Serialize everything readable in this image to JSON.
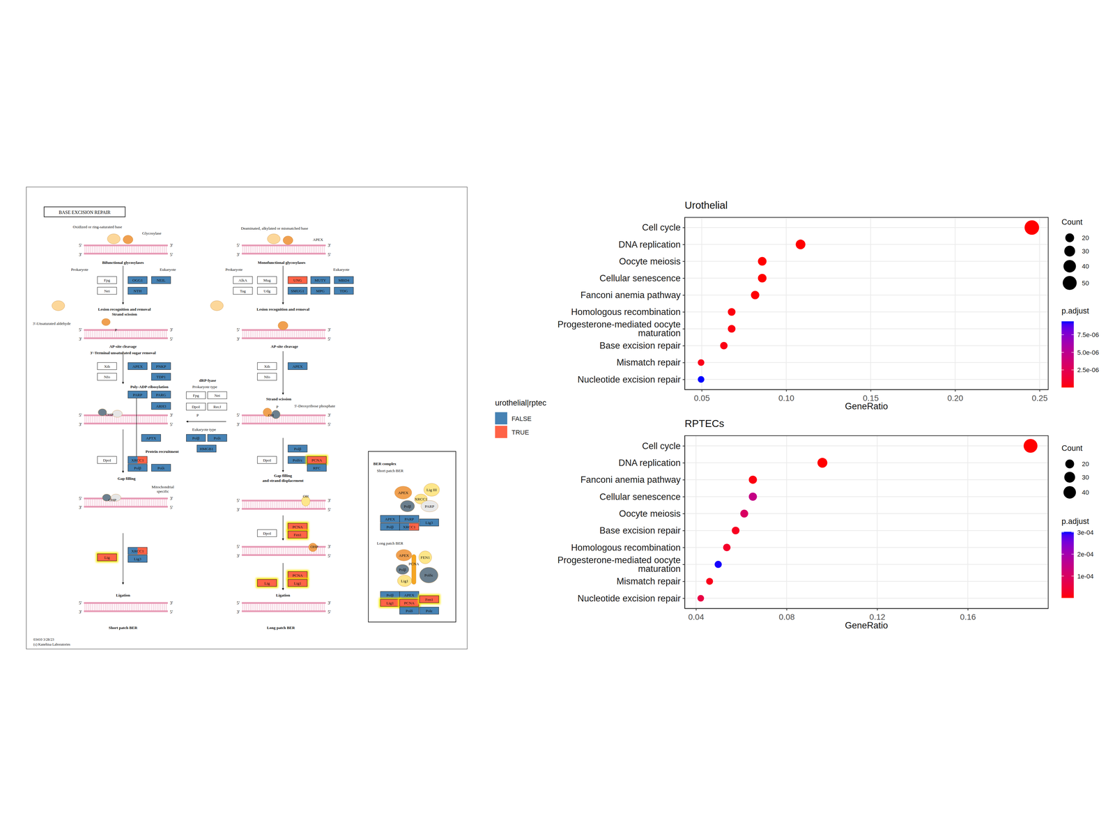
{
  "chart_data": [
    {
      "type": "dot",
      "title": "Urothelial",
      "x_label": "GeneRatio",
      "orientation": "horizontal",
      "grid": true,
      "categories": [
        "Cell cycle",
        "DNA replication",
        "Oocyte meiosis",
        "Cellular senescence",
        "Fanconi anemia pathway",
        "Homologous recombination",
        "Progesterone-mediated oocyte\nmaturation",
        "Base excision repair",
        "Mismatch repair",
        "Nucleotide excision repair"
      ],
      "values": [
        0.2454,
        0.1085,
        0.0858,
        0.0858,
        0.0816,
        0.0677,
        0.0677,
        0.0631,
        0.0496,
        0.0496
      ],
      "counts": [
        54,
        24,
        19,
        19,
        18,
        15,
        15,
        14,
        11,
        11
      ],
      "p_adjust": [
        2.1e-20,
        3.5e-12,
        4.2e-09,
        6.5e-09,
        5.5e-08,
        2.2e-07,
        2.4e-07,
        3.1e-07,
        4.5e-07,
        9.4e-06
      ],
      "xlim": [
        0.0399,
        0.2551
      ],
      "xticks": [
        0.05,
        {
          "value": 0.1,
          "label": "0.10"
        },
        0.15,
        {
          "value": 0.2,
          "label": "0.20"
        },
        0.25
      ],
      "size_legend": {
        "title": "Count",
        "values": [
          20,
          30,
          40,
          50
        ]
      },
      "colorbar": {
        "title": "p.adjust",
        "range": [
          2.1e-20,
          9.4e-06
        ],
        "colors": [
          "#FF0000",
          "#0000FF"
        ],
        "ticks": [
          {
            "value": 2.5e-06,
            "label": "2.5e-06"
          },
          {
            "value": 5e-06,
            "label": "5.0e-06"
          },
          {
            "value": 7.5e-06,
            "label": "7.5e-06"
          }
        ]
      }
    },
    {
      "type": "dot",
      "title": "RPTECs",
      "x_label": "GeneRatio",
      "orientation": "horizontal",
      "grid": true,
      "categories": [
        "Cell cycle",
        "DNA replication",
        "Fanconi anemia pathway",
        "Cellular senescence",
        "Oocyte meiosis",
        "Base excision repair",
        "Homologous recombination",
        "Progesterone-mediated oocyte\nmaturation",
        "Mismatch repair",
        "Nucleotide excision repair"
      ],
      "values": [
        0.1877,
        0.0958,
        0.0651,
        0.0651,
        0.0613,
        0.0575,
        0.0536,
        0.0498,
        0.046,
        0.0421
      ],
      "counts": [
        49,
        25,
        17,
        17,
        16,
        15,
        14,
        13,
        12,
        11
      ],
      "p_adjust": [
        1e-18,
        1e-10,
        8e-06,
        0.000145,
        0.0001,
        2e-05,
        3e-05,
        0.0003,
        1.5e-05,
        6e-05
      ],
      "xlim": [
        0.035,
        0.1955
      ],
      "xticks": [
        0.04,
        0.08,
        0.12,
        0.16
      ],
      "size_legend": {
        "title": "Count",
        "values": [
          20,
          30,
          40
        ]
      },
      "colorbar": {
        "title": "p.adjust",
        "range": [
          1e-18,
          0.000302
        ],
        "colors": [
          "#FF0000",
          "#0000FF"
        ],
        "ticks": [
          {
            "value": 0.0001,
            "label": "1e-04"
          },
          {
            "value": 0.0002,
            "label": "2e-04"
          },
          {
            "value": 0.0003,
            "label": "3e-04"
          }
        ]
      }
    }
  ],
  "diagram": {
    "title": "BASE EXCISION REPAIR",
    "dna_ends": [
      "5'",
      "3'"
    ],
    "labels": [
      "Oxidized or ring-saturated base",
      "Glycosylase",
      "Bifunctional glycosylases",
      "Prokaryote",
      "Eukaryote",
      "Lesion recognition and removal",
      "Strand scission",
      "3'-Unsaturated aldehyde",
      "AP-site cleavage",
      "3'-Terminal unsaturated sugar removal",
      "Poly-ADP-ribosylation",
      "Protein recruitment",
      "Gap filling",
      "Mitochondrial",
      "specific",
      "Ligation",
      "Short patch BER",
      "dRP-lyase",
      "Prokaryote type",
      "Eukaryote type",
      "Deaminated, alkylated or mismatched base",
      "APEX",
      "Monofunctional glycosylases",
      "Prokaryote",
      "Eukaryote",
      "Lesion recognition and removal",
      "AP-site cleavage",
      "Strand scission",
      "5'-Deoxyribose phosphate",
      "Gap filling",
      "and strand displacement",
      "Ligation",
      "Long patch BER",
      "BER complex",
      "Short patch BER",
      "Long patch BER",
      "APEX",
      "Lig III",
      "XRCC1",
      "Polβ",
      "PARP",
      "APEX",
      "FEN1",
      "PCNA",
      "Polβ",
      "Polδε",
      "Lig1",
      "P",
      "OHP",
      "OHP",
      "P",
      "OH",
      "OH",
      "P",
      "OHP"
    ],
    "genes": [
      {
        "label": "Fpg",
        "state": null
      },
      {
        "label": "Nei",
        "state": null
      },
      {
        "label": "OGG1",
        "state": "FALSE"
      },
      {
        "label": "NEIL",
        "state": "FALSE"
      },
      {
        "label": "NTH",
        "state": "FALSE"
      },
      {
        "label": "Xth",
        "state": null
      },
      {
        "label": "Nfo",
        "state": null
      },
      {
        "label": "APEX",
        "state": "FALSE"
      },
      {
        "label": "PNKP",
        "state": "FALSE"
      },
      {
        "label": "TDP1",
        "state": "FALSE"
      },
      {
        "label": "PARP",
        "state": "FALSE"
      },
      {
        "label": "PARG",
        "state": "FALSE"
      },
      {
        "label": "ARH3",
        "state": "FALSE"
      },
      {
        "label": "APTX",
        "state": "FALSE"
      },
      {
        "label": "DpoI",
        "state": null
      },
      {
        "label": "XRCC1",
        "state": [
          "FALSE",
          "TRUE"
        ]
      },
      {
        "label": "Polβ",
        "state": "FALSE"
      },
      {
        "label": "Polλ",
        "state": "FALSE"
      },
      {
        "label": "Lig",
        "state": "TRUE",
        "highlight": true
      },
      {
        "label": "XRCC1",
        "state": [
          "FALSE",
          "TRUE"
        ]
      },
      {
        "label": "Lig3",
        "state": "FALSE"
      },
      {
        "label": "Fpg",
        "state": null
      },
      {
        "label": "Nei",
        "state": null
      },
      {
        "label": "DpoI",
        "state": null
      },
      {
        "label": "RecJ",
        "state": null
      },
      {
        "label": "Polβ",
        "state": "FALSE"
      },
      {
        "label": "Polλ",
        "state": "FALSE"
      },
      {
        "label": "HMGB1",
        "state": "FALSE"
      },
      {
        "label": "AlkA",
        "state": null
      },
      {
        "label": "Mug",
        "state": null
      },
      {
        "label": "Tag",
        "state": null
      },
      {
        "label": "Udg",
        "state": null
      },
      {
        "label": "UNG",
        "state": "TRUE"
      },
      {
        "label": "MUTY",
        "state": "FALSE"
      },
      {
        "label": "MBD4",
        "state": "FALSE"
      },
      {
        "label": "SMUG1",
        "state": "FALSE"
      },
      {
        "label": "MPG",
        "state": "FALSE"
      },
      {
        "label": "TDG",
        "state": "FALSE"
      },
      {
        "label": "Xth",
        "state": null
      },
      {
        "label": "Nfo",
        "state": null
      },
      {
        "label": "APEX",
        "state": "FALSE"
      },
      {
        "label": "Polβ",
        "state": "FALSE"
      },
      {
        "label": "DpoI",
        "state": null
      },
      {
        "label": "Polδ/ε",
        "state": "FALSE"
      },
      {
        "label": "PCNA",
        "state": "TRUE",
        "highlight": true
      },
      {
        "label": "RFC",
        "state": "FALSE"
      },
      {
        "label": "DpoI",
        "state": null
      },
      {
        "label": "PCNA",
        "state": "TRUE",
        "highlight": true
      },
      {
        "label": "Fen1",
        "state": "TRUE",
        "highlight": true
      },
      {
        "label": "Lig",
        "state": "TRUE",
        "highlight": true
      },
      {
        "label": "PCNA",
        "state": "TRUE",
        "highlight": true
      },
      {
        "label": "Lig1",
        "state": "TRUE",
        "highlight": true
      },
      {
        "label": "APEX",
        "state": "FALSE"
      },
      {
        "label": "PARP",
        "state": "FALSE"
      },
      {
        "label": "Lig3",
        "state": "FALSE"
      },
      {
        "label": "Polβ",
        "state": "FALSE"
      },
      {
        "label": "XRCC1",
        "state": [
          "FALSE",
          "TRUE"
        ]
      },
      {
        "label": "Polβ",
        "state": "FALSE"
      },
      {
        "label": "APEX",
        "state": "FALSE"
      },
      {
        "label": "Lig1",
        "state": "TRUE",
        "highlight": true
      },
      {
        "label": "PCNA",
        "state": "TRUE",
        "highlight": true
      },
      {
        "label": "Fen1",
        "state": "TRUE",
        "highlight": true
      },
      {
        "label": "Polδ",
        "state": "FALSE"
      },
      {
        "label": "Polε",
        "state": "FALSE"
      }
    ],
    "footer": [
      "03410 3/28/23",
      "(c) Kanehisa Laboratories"
    ],
    "legend": {
      "title": "urothelial|rptec",
      "items": [
        {
          "label": "FALSE",
          "color": "#4682B4"
        },
        {
          "label": "TRUE",
          "color": "#FF6347"
        }
      ]
    }
  }
}
